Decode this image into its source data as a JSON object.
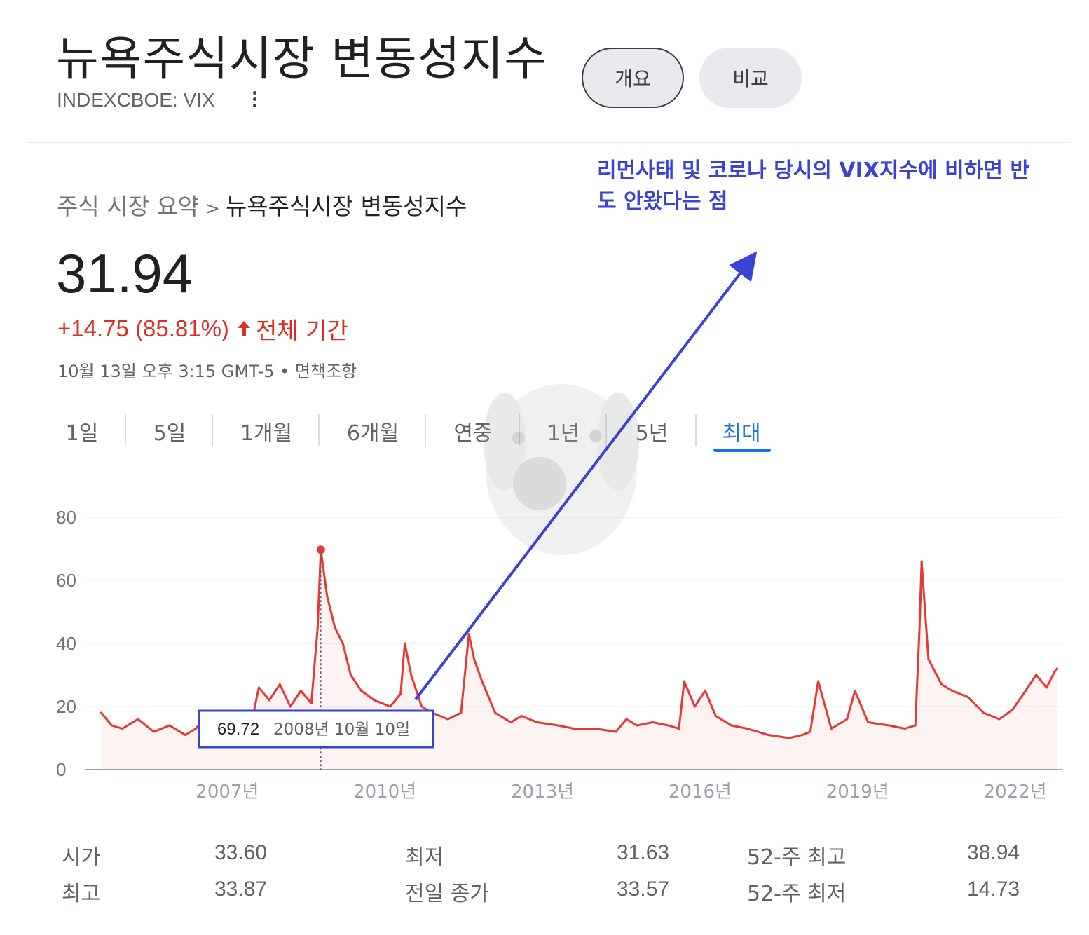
{
  "header": {
    "title": "뉴욕주식시장 변동성지수",
    "ticker": "INDEXCBOE: VIX",
    "buttons": {
      "overview": "개요",
      "compare": "비교"
    }
  },
  "breadcrumb": {
    "parent": "주식 시장 요약",
    "separator": ">",
    "current": "뉴욕주식시장 변동성지수"
  },
  "annotation": {
    "text": "리먼사태 및 코로나 당시의 VIX지수에 비하면 반도 안왔다는 점"
  },
  "quote": {
    "price": "31.94",
    "change": "+14.75 (85.81%)",
    "period": "전체 기간",
    "timestamp": "10월 13일 오후 3:15 GMT-5 • 면책조항"
  },
  "range_tabs": [
    "1일",
    "5일",
    "1개월",
    "6개월",
    "연중",
    "1년",
    "5년",
    "최대"
  ],
  "range_selected": "최대",
  "tooltip": {
    "value": "69.72",
    "date": "2008년 10월 10일"
  },
  "stats": [
    {
      "label": "시가",
      "value": "33.60"
    },
    {
      "label": "최고",
      "value": "33.87"
    },
    {
      "label": "최저",
      "value": "31.63"
    },
    {
      "label": "전일 종가",
      "value": "33.57"
    },
    {
      "label": "52-주 최고",
      "value": "38.94"
    },
    {
      "label": "52-주 최저",
      "value": "14.73"
    }
  ],
  "colors": {
    "line": "#e53935",
    "accent": "#1a73e8",
    "annotation": "#3b42d6",
    "negative": "#d93025"
  },
  "chart_data": {
    "type": "line",
    "y_ticks": [
      "80",
      "60",
      "40",
      "20",
      "0"
    ],
    "x_ticks": [
      "2007년",
      "2010년",
      "2013년",
      "2016년",
      "2019년",
      "2022년"
    ],
    "ylim": [
      0,
      80
    ],
    "xlim": [
      2004.3,
      2022.9
    ],
    "grid": true,
    "x": [
      2004.6,
      2004.8,
      2005.0,
      2005.3,
      2005.6,
      2005.9,
      2006.2,
      2006.4,
      2006.6,
      2006.9,
      2007.2,
      2007.45,
      2007.6,
      2007.8,
      2008.0,
      2008.2,
      2008.4,
      2008.6,
      2008.72,
      2008.78,
      2008.9,
      2009.05,
      2009.2,
      2009.35,
      2009.55,
      2009.8,
      2010.1,
      2010.3,
      2010.38,
      2010.5,
      2010.7,
      2010.9,
      2011.2,
      2011.45,
      2011.6,
      2011.7,
      2011.85,
      2012.1,
      2012.4,
      2012.6,
      2012.9,
      2013.3,
      2013.6,
      2014.0,
      2014.4,
      2014.6,
      2014.8,
      2015.1,
      2015.4,
      2015.6,
      2015.7,
      2015.9,
      2016.1,
      2016.3,
      2016.6,
      2016.9,
      2017.3,
      2017.7,
      2017.95,
      2018.1,
      2018.25,
      2018.5,
      2018.8,
      2018.95,
      2019.2,
      2019.6,
      2019.9,
      2020.1,
      2020.18,
      2020.22,
      2020.35,
      2020.6,
      2020.8,
      2021.1,
      2021.4,
      2021.7,
      2021.95,
      2022.2,
      2022.4,
      2022.6,
      2022.75,
      2022.8
    ],
    "series": [
      {
        "values": [
          18,
          14,
          13,
          16,
          12,
          14,
          11,
          13,
          17,
          11,
          13,
          14,
          26,
          22,
          27,
          20,
          25,
          21,
          45,
          69.72,
          55,
          45,
          40,
          30,
          25,
          22,
          20,
          24,
          40,
          30,
          20,
          18,
          16,
          18,
          43,
          35,
          28,
          18,
          15,
          17,
          15,
          14,
          13,
          13,
          12,
          16,
          14,
          15,
          14,
          13,
          28,
          20,
          25,
          17,
          14,
          13,
          11,
          10,
          11,
          12,
          28,
          13,
          16,
          25,
          15,
          14,
          13,
          14,
          45,
          66,
          35,
          27,
          25,
          23,
          18,
          16,
          19,
          25,
          30,
          26,
          31,
          32
        ]
      }
    ]
  }
}
